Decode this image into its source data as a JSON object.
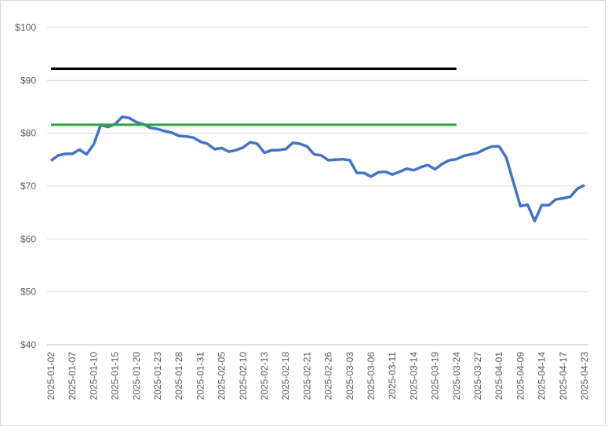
{
  "chart_data": {
    "type": "line",
    "categories": [
      "2025-01-02",
      null,
      null,
      "2025-01-07",
      null,
      null,
      "2025-01-10",
      null,
      null,
      "2025-01-15",
      null,
      null,
      "2025-01-20",
      null,
      null,
      "2025-01-23",
      null,
      null,
      "2025-01-28",
      null,
      null,
      "2025-01-31",
      null,
      null,
      "2025-02-05",
      null,
      null,
      "2025-02-10",
      null,
      null,
      "2025-02-13",
      null,
      null,
      "2025-02-18",
      null,
      null,
      "2025-02-21",
      null,
      null,
      "2025-02-26",
      null,
      null,
      "2025-03-03",
      null,
      null,
      "2025-03-06",
      null,
      null,
      "2025-03-11",
      null,
      null,
      "2025-03-14",
      null,
      null,
      "2025-03-19",
      null,
      null,
      "2025-03-24",
      null,
      null,
      "2025-03-27",
      null,
      null,
      "2025-04-01",
      null,
      null,
      "2025-04-09",
      null,
      null,
      "2025-04-14",
      null,
      null,
      "2025-04-17",
      null,
      null,
      "2025-04-23"
    ],
    "series": [
      {
        "color": "#4472c4",
        "width": 3.5,
        "values": [
          74.8,
          75.8,
          76.1,
          76.1,
          76.9,
          76.0,
          77.9,
          81.6,
          81.2,
          81.7,
          83.1,
          82.9,
          82.1,
          81.7,
          81.0,
          80.8,
          80.4,
          80.1,
          79.5,
          79.4,
          79.2,
          78.4,
          78.0,
          77.0,
          77.2,
          76.5,
          76.8,
          77.3,
          78.3,
          78.0,
          76.3,
          76.8,
          76.8,
          77.0,
          78.2,
          78.0,
          77.5,
          76.0,
          75.8,
          74.9,
          75.0,
          75.1,
          74.9,
          72.5,
          72.5,
          71.8,
          72.6,
          72.7,
          72.2,
          72.7,
          73.3,
          73.0,
          73.6,
          74.0,
          73.2,
          74.2,
          74.9,
          75.1,
          75.7,
          76.0,
          76.3,
          77.0,
          77.5,
          77.5,
          75.4,
          70.8,
          66.2,
          66.5,
          63.4,
          66.4,
          66.4,
          67.5,
          67.7,
          68.0,
          69.5,
          70.2
        ]
      },
      {
        "color": "#000000",
        "width": 3,
        "values": [
          92.2,
          92.2,
          92.2,
          92.2,
          92.2,
          92.2,
          92.2,
          92.2,
          92.2,
          92.2,
          92.2,
          92.2,
          92.2,
          92.2,
          92.2,
          92.2,
          92.2,
          92.2,
          92.2,
          92.2,
          92.2,
          92.2,
          92.2,
          92.2,
          92.2,
          92.2,
          92.2,
          92.2,
          92.2,
          92.2,
          92.2,
          92.2,
          92.2,
          92.2,
          92.2,
          92.2,
          92.2,
          92.2,
          92.2,
          92.2,
          92.2,
          92.2,
          92.2,
          92.2,
          92.2,
          92.2,
          92.2,
          92.2,
          92.2,
          92.2,
          92.2,
          92.2,
          92.2,
          92.2,
          92.2,
          92.2,
          92.2,
          92.2,
          null,
          null,
          null,
          null,
          null,
          null,
          null,
          null,
          null,
          null,
          null,
          null,
          null,
          null,
          null,
          null,
          null,
          null
        ]
      },
      {
        "color": "#2ca63c",
        "width": 3,
        "values": [
          81.6,
          81.6,
          81.6,
          81.6,
          81.6,
          81.6,
          81.6,
          81.6,
          81.6,
          81.6,
          81.6,
          81.6,
          81.6,
          81.6,
          81.6,
          81.6,
          81.6,
          81.6,
          81.6,
          81.6,
          81.6,
          81.6,
          81.6,
          81.6,
          81.6,
          81.6,
          81.6,
          81.6,
          81.6,
          81.6,
          81.6,
          81.6,
          81.6,
          81.6,
          81.6,
          81.6,
          81.6,
          81.6,
          81.6,
          81.6,
          81.6,
          81.6,
          81.6,
          81.6,
          81.6,
          81.6,
          81.6,
          81.6,
          81.6,
          81.6,
          81.6,
          81.6,
          81.6,
          81.6,
          81.6,
          81.6,
          81.6,
          81.6,
          null,
          null,
          null,
          null,
          null,
          null,
          null,
          null,
          null,
          null,
          null,
          null,
          null,
          null,
          null,
          null,
          null,
          null
        ]
      }
    ],
    "ylim": [
      40,
      100
    ],
    "yticks": [
      {
        "value": 40,
        "label": "$40"
      },
      {
        "value": 50,
        "label": "$50"
      },
      {
        "value": 60,
        "label": "$60"
      },
      {
        "value": 70,
        "label": "$70"
      },
      {
        "value": 80,
        "label": "$80"
      },
      {
        "value": 90,
        "label": "$90"
      },
      {
        "value": 100,
        "label": "$100"
      }
    ],
    "grid": true
  }
}
